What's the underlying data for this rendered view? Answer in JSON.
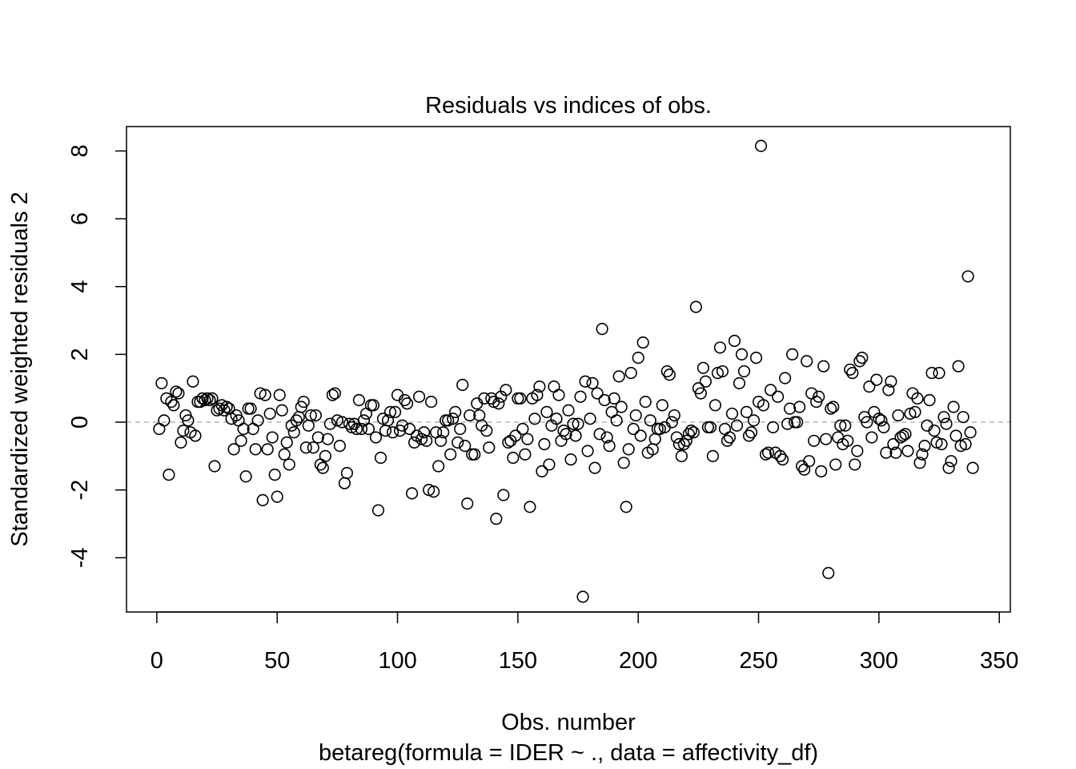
{
  "chart_data": {
    "type": "scatter",
    "title": "Residuals vs indices of obs.",
    "xlabel": "Obs. number",
    "subtitle": "betareg(formula = IDER ~ ., data = affectivity_df)",
    "ylabel": "Standardized weighted residuals 2",
    "xlim": [
      -12.6,
      354.6
    ],
    "ylim": [
      -5.6,
      8.72
    ],
    "x_ticks": [
      "0",
      "50",
      "100",
      "150",
      "200",
      "250",
      "300",
      "350"
    ],
    "y_ticks": [
      "-4",
      "-2",
      "0",
      "2",
      "4",
      "6",
      "8"
    ],
    "reference_line": {
      "y": 0,
      "style": "dashed",
      "color": "#b3b3b3"
    },
    "marker": {
      "shape": "open-circle",
      "color": "#000000"
    },
    "grid": false,
    "legend": "none",
    "series": [
      {
        "y": [
          -0.2,
          1.15,
          0.05,
          0.7,
          -1.55,
          0.6,
          0.5,
          0.9,
          0.85,
          -0.6,
          -0.25,
          0.2,
          0.05,
          -0.3,
          1.2,
          -0.4,
          0.6,
          0.6,
          0.7,
          0.65,
          0.7,
          0.65,
          0.7,
          -1.3,
          0.35,
          0.4,
          0.5,
          0.35,
          0.45,
          0.4,
          0.1,
          -0.8,
          0.2,
          0.05,
          -0.55,
          -0.2,
          -1.6,
          0.4,
          0.4,
          -0.2,
          -0.8,
          0.05,
          0.85,
          -2.3,
          0.8,
          -0.8,
          0.25,
          -0.45,
          -1.55,
          -2.2,
          0.8,
          0.35,
          -0.95,
          -0.6,
          -1.25,
          -0.1,
          -0.3,
          0.05,
          0.15,
          0.45,
          0.6,
          -0.75,
          -0.1,
          0.2,
          -0.75,
          0.2,
          -0.45,
          -1.25,
          -1.35,
          -1.0,
          -0.5,
          -0.05,
          0.8,
          0.85,
          0.05,
          -0.7,
          0.0,
          -1.8,
          -1.5,
          -0.05,
          -0.15,
          -0.05,
          -0.2,
          0.65,
          -0.2,
          0.05,
          0.25,
          -0.2,
          0.5,
          0.5,
          -0.45,
          -2.6,
          -1.05,
          0.1,
          -0.25,
          0.05,
          0.3,
          -0.3,
          0.3,
          0.8,
          -0.25,
          -0.1,
          0.65,
          0.55,
          -0.2,
          -2.1,
          -0.6,
          -0.4,
          0.75,
          -0.5,
          -0.3,
          -0.55,
          -2.0,
          0.6,
          -2.05,
          -0.3,
          -1.3,
          -0.55,
          -0.3,
          0.05,
          0.05,
          -0.95,
          0.1,
          0.3,
          -0.6,
          -0.2,
          1.1,
          -0.7,
          -2.4,
          0.2,
          -0.95,
          -0.95,
          0.55,
          0.2,
          -0.1,
          0.7,
          -0.25,
          -0.75,
          0.7,
          0.6,
          -2.85,
          0.55,
          0.75,
          -2.15,
          0.95,
          -0.6,
          -0.55,
          -1.05,
          -0.4,
          0.7,
          0.7,
          -0.2,
          -0.95,
          -0.5,
          -2.5,
          0.7,
          0.1,
          0.8,
          1.05,
          -1.45,
          -0.65,
          0.3,
          -1.25,
          -0.1,
          1.05,
          0.1,
          0.8,
          -0.55,
          -0.25,
          -0.35,
          0.35,
          -1.1,
          -0.05,
          -0.4,
          -0.05,
          0.75,
          -5.15,
          1.2,
          -0.85,
          0.1,
          1.15,
          -1.35,
          0.85,
          -0.35,
          2.75,
          0.65,
          -0.45,
          -0.7,
          0.3,
          0.7,
          0.05,
          1.35,
          0.45,
          -1.2,
          -2.5,
          -0.8,
          1.45,
          -0.2,
          0.2,
          1.9,
          -0.4,
          2.35,
          0.6,
          -0.9,
          0.05,
          -0.8,
          -0.5,
          -0.2,
          -0.2,
          0.5,
          -0.15,
          1.5,
          1.4,
          0.0,
          0.2,
          -0.45,
          -0.65,
          -1.0,
          -0.65,
          -0.55,
          -0.35,
          -0.25,
          -0.3,
          3.4,
          1.0,
          0.85,
          1.6,
          1.2,
          -0.15,
          -0.15,
          -1.0,
          0.5,
          1.45,
          2.2,
          1.5,
          -0.2,
          -0.55,
          -0.45,
          0.25,
          2.4,
          -0.1,
          1.15,
          2.0,
          1.5,
          0.3,
          -0.4,
          -0.3,
          0.05,
          1.9,
          0.6,
          8.15,
          0.5,
          -0.95,
          -0.9,
          0.95,
          -0.15,
          -0.9,
          0.75,
          -1.0,
          -1.1,
          1.3,
          -0.05,
          0.4,
          2.0,
          0.0,
          0.0,
          0.45,
          -1.3,
          -1.4,
          1.8,
          -1.15,
          0.85,
          -0.55,
          0.6,
          0.75,
          -1.45,
          1.65,
          -0.5,
          -4.45,
          0.4,
          0.45,
          -1.25,
          -0.45,
          -0.1,
          -0.65,
          -0.1,
          -0.55,
          1.55,
          1.45,
          -1.25,
          -0.85,
          1.8,
          1.9,
          0.15,
          0.0,
          1.05,
          -0.45,
          0.3,
          1.25,
          0.1,
          0.05,
          -0.15,
          -0.9,
          0.95,
          1.2,
          -0.65,
          -0.9,
          0.2,
          -0.45,
          -0.4,
          -0.35,
          -0.85,
          0.25,
          0.85,
          0.3,
          0.7,
          -1.2,
          -0.95,
          -0.7,
          -0.1,
          0.65,
          1.45,
          -0.25,
          -0.6,
          1.45,
          -0.65,
          0.15,
          -0.05,
          -1.35,
          -1.15,
          0.45,
          -0.4,
          1.65,
          -0.7,
          0.15,
          -0.65,
          4.3,
          -0.3,
          -1.35
        ]
      }
    ]
  }
}
